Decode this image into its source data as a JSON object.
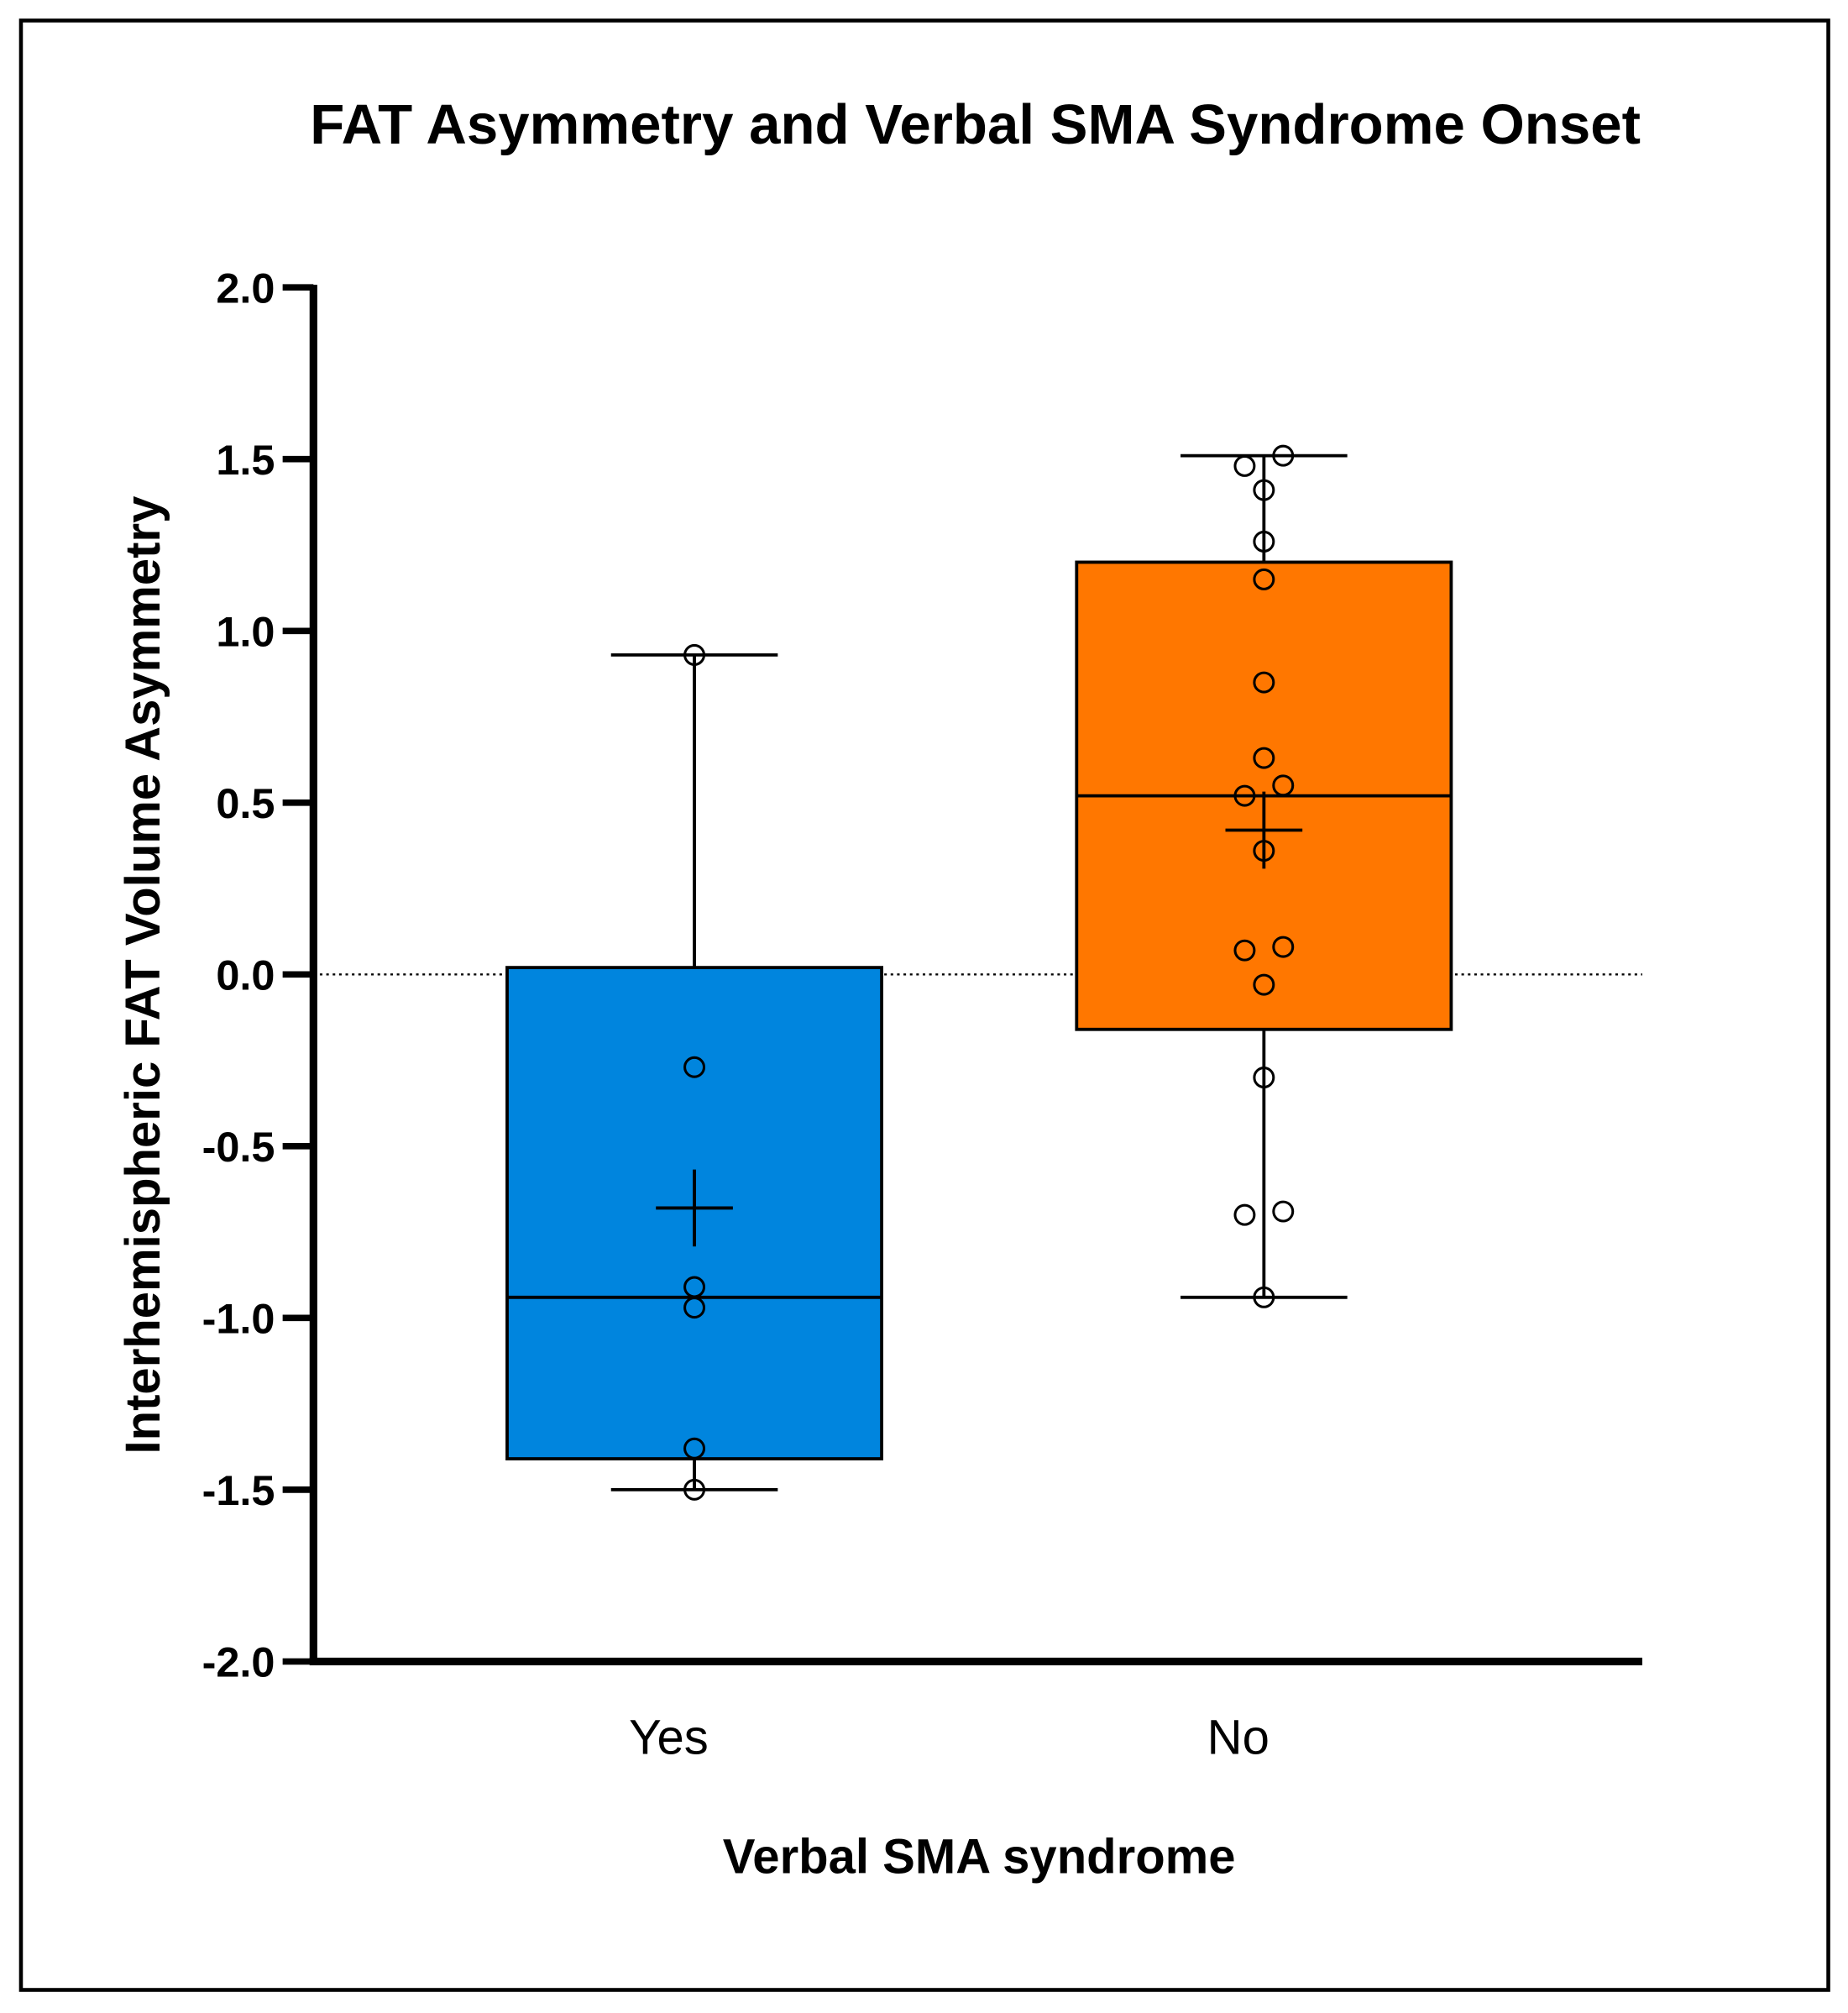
{
  "chart_data": {
    "type": "box",
    "title": "FAT Asymmetry and Verbal SMA Syndrome Onset",
    "xlabel": "Verbal SMA syndrome",
    "ylabel": "Interhemispheric FAT Volume Asymmetry",
    "ylim": [
      -2.0,
      2.0
    ],
    "yticks": [
      "2.0",
      "1.5",
      "1.0",
      "0.5",
      "0.0",
      "-0.5",
      "-1.0",
      "-1.5",
      "-2.0"
    ],
    "ytick_values": [
      2.0,
      1.5,
      1.0,
      0.5,
      0.0,
      -0.5,
      -1.0,
      -1.5,
      -2.0
    ],
    "reference_line": 0.0,
    "categories": [
      "Yes",
      "No"
    ],
    "series": [
      {
        "name": "Yes",
        "color": "#0085DE",
        "whisker_low": -1.5,
        "q1": -1.41,
        "median": -0.94,
        "q3": 0.02,
        "whisker_high": 0.93,
        "mean": -0.68,
        "points": [
          0.93,
          -0.27,
          -0.91,
          -0.97,
          -1.38,
          -1.5
        ]
      },
      {
        "name": "No",
        "color": "#FF7700",
        "whisker_low": -0.94,
        "q1": -0.16,
        "median": 0.52,
        "q3": 1.2,
        "whisker_high": 1.51,
        "mean": 0.42,
        "points": [
          1.51,
          1.48,
          1.41,
          1.26,
          1.15,
          0.85,
          0.63,
          0.55,
          0.52,
          0.36,
          0.08,
          0.07,
          -0.03,
          -0.3,
          -0.69,
          -0.7,
          -0.94
        ]
      }
    ]
  }
}
